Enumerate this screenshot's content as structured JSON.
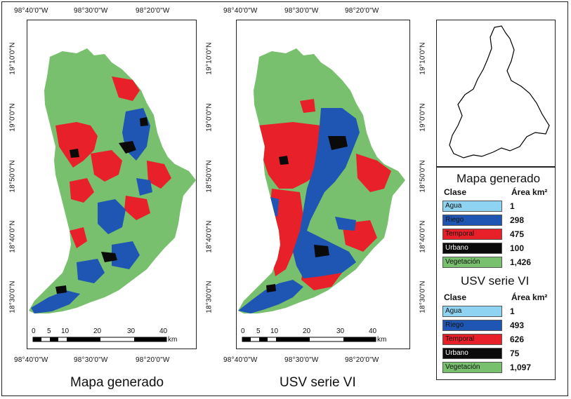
{
  "colors": {
    "agua": "#8fd3f2",
    "riego": "#1f56b3",
    "temporal": "#e8202a",
    "urbano": "#0a0a0a",
    "vegetacion": "#78c06e"
  },
  "coords": {
    "top_lon": [
      "98°40'0\"W",
      "98°30'0\"W",
      "98°20'0\"W"
    ],
    "bottom_lon": [
      "98°40'0\"W",
      "98°30'0\"W",
      "98°20'0\"W"
    ],
    "lat": [
      "19°10'0\"N",
      "19°0'0\"N",
      "18°50'0\"N",
      "18°40'0\"N",
      "18°30'0\"N"
    ]
  },
  "scale": {
    "ticks": [
      "0",
      "5",
      "10",
      "20",
      "30",
      "40"
    ],
    "unit": "km"
  },
  "captions": {
    "left": "Mapa generado",
    "right": "USV serie VI"
  },
  "legend_generated": {
    "title": "Mapa generado",
    "col_class": "Clase",
    "col_area": "Área km²",
    "rows": [
      {
        "name": "Agua",
        "value": "1",
        "color": "#8fd3f2"
      },
      {
        "name": "Riego",
        "value": "298",
        "color": "#1f56b3"
      },
      {
        "name": "Temporal",
        "value": "475",
        "color": "#e8202a"
      },
      {
        "name": "Urbano",
        "value": "100",
        "color": "#0a0a0a"
      },
      {
        "name": "Vegetación",
        "value": "1,426",
        "color": "#78c06e"
      }
    ]
  },
  "legend_usv": {
    "title": "USV serie VI",
    "col_class": "Clase",
    "col_area": "Área km²",
    "rows": [
      {
        "name": "Agua",
        "value": "1",
        "color": "#8fd3f2"
      },
      {
        "name": "Riego",
        "value": "493",
        "color": "#1f56b3"
      },
      {
        "name": "Temporal",
        "value": "626",
        "color": "#e8202a"
      },
      {
        "name": "Urbano",
        "value": "75",
        "color": "#0a0a0a"
      },
      {
        "name": "Vegetación",
        "value": "1,097",
        "color": "#78c06e"
      }
    ]
  }
}
